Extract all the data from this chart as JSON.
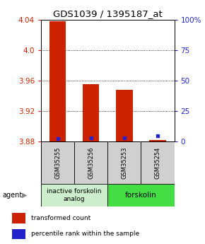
{
  "title": "GDS1039 / 1395187_at",
  "categories": [
    "GSM35255",
    "GSM35256",
    "GSM35253",
    "GSM35254"
  ],
  "red_values": [
    4.038,
    3.955,
    3.948,
    3.882
  ],
  "blue_pct": [
    2.2,
    3.0,
    3.0,
    4.8
  ],
  "ymin": 3.88,
  "ymax": 4.04,
  "yticks_left": [
    3.88,
    3.92,
    3.96,
    4.0,
    4.04
  ],
  "yticks_right_vals": [
    0,
    25,
    50,
    75,
    100
  ],
  "yticks_right_labels": [
    "0",
    "25",
    "50",
    "75",
    "100%"
  ],
  "grid_vals": [
    3.92,
    3.96,
    4.0
  ],
  "bar_base": 3.88,
  "bar_width": 0.5,
  "red_color": "#cc2200",
  "blue_color": "#2222cc",
  "group1_label": "inactive forskolin\nanalog",
  "group2_label": "forskolin",
  "group1_color": "#cceecc",
  "group2_color": "#44dd44",
  "sample_box_color": "#d0d0d0",
  "agent_label": "agent",
  "legend_red": "transformed count",
  "legend_blue": "percentile rank within the sample",
  "title_fontsize": 9.5,
  "tick_fontsize": 7.5,
  "label_fontsize": 7,
  "group_fontsize": 6.5,
  "legend_fontsize": 6.5
}
